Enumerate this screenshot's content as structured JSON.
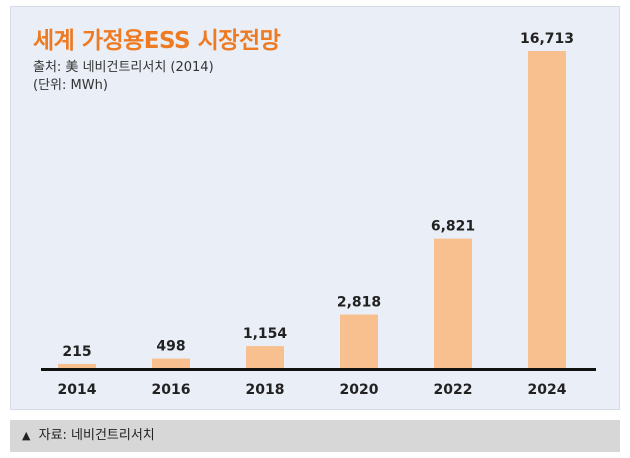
{
  "header": {
    "title": "세계 가정용ESS 시장전망",
    "source": "출처: 美 네비건트리서치 (2014)",
    "unit": "(단위: MWh)"
  },
  "caption": {
    "marker": "▲",
    "text": "자료: 네비건트리서치"
  },
  "colors": {
    "bar": "#f9c08f",
    "title": "#ee7a22",
    "axis": "#111111"
  },
  "chart_data": {
    "type": "bar",
    "title": "세계 가정용ESS 시장전망",
    "ylabel": "(단위: MWh)",
    "categories": [
      "2014",
      "2016",
      "2018",
      "2020",
      "2022",
      "2024"
    ],
    "values": [
      215,
      498,
      1154,
      2818,
      6821,
      16713
    ],
    "value_labels": [
      "215",
      "498",
      "1,154",
      "2,818",
      "6,821",
      "16,713"
    ],
    "ylim": [
      0,
      16713
    ],
    "grid": false,
    "legend": "none"
  }
}
